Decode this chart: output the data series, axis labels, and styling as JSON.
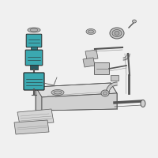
{
  "bg_color": "#f0f0f0",
  "highlight_color": "#3ba8b0",
  "line_color": "#555555",
  "dark_color": "#2a2a2a",
  "gray1": "#d8d8d8",
  "gray2": "#c8c8c8",
  "gray3": "#b8b8b8",
  "title": "",
  "figsize": [
    2.0,
    2.0
  ],
  "dpi": 100
}
